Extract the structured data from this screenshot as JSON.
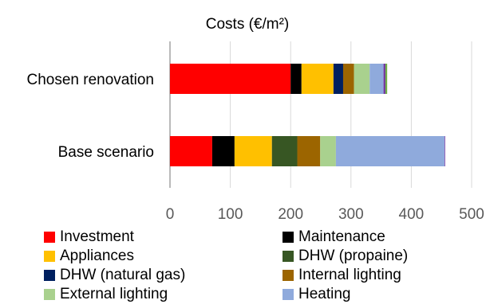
{
  "chart_data": {
    "type": "bar",
    "orientation": "horizontal",
    "stacked": true,
    "title": "Costs (€/m²)",
    "xlabel": "",
    "ylabel": "",
    "xlim": [
      0,
      500
    ],
    "xticks": [
      0,
      100,
      200,
      300,
      400,
      500
    ],
    "grid": "vertical",
    "legend_position": "bottom",
    "categories": [
      "Chosen renovation",
      "Base scenario"
    ],
    "series": [
      {
        "name": "Investment",
        "color": "#ff0000",
        "values": [
          200,
          70
        ]
      },
      {
        "name": "Maintenance",
        "color": "#000000",
        "values": [
          18,
          37
        ]
      },
      {
        "name": "Appliances",
        "color": "#ffc000",
        "values": [
          53,
          62
        ]
      },
      {
        "name": "DHW (propaine)",
        "color": "#375623",
        "values": [
          0,
          42
        ]
      },
      {
        "name": "DHW (natural gas)",
        "color": "#002060",
        "values": [
          16,
          0
        ]
      },
      {
        "name": "Internal lighting",
        "color": "#9c6500",
        "values": [
          18,
          38
        ]
      },
      {
        "name": "External lighting",
        "color": "#a9d18e",
        "values": [
          26,
          26
        ]
      },
      {
        "name": "Heating",
        "color": "#8faadc",
        "values": [
          23,
          180
        ]
      },
      {
        "name": "",
        "color": "#7030a0",
        "values": [
          3,
          1
        ]
      },
      {
        "name": "",
        "color": "#70ad47",
        "values": [
          3,
          0
        ]
      }
    ]
  }
}
